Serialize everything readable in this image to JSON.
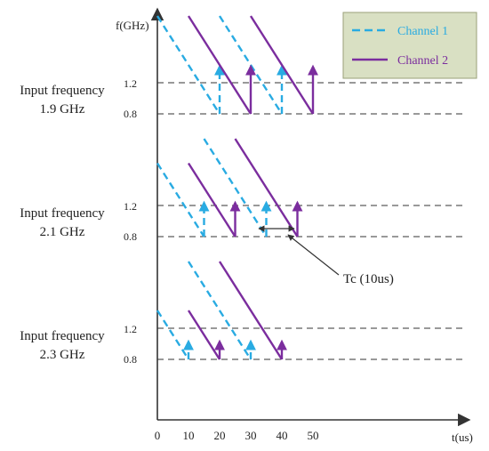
{
  "axes": {
    "y_label": "f(GHz)",
    "x_label": "t(us)",
    "x_ticks": [
      "0",
      "10",
      "20",
      "30",
      "40",
      "50"
    ]
  },
  "legend": {
    "channel1": "Channel 1",
    "channel2": "Channel 2"
  },
  "colors": {
    "channel1": "#29abe2",
    "channel2": "#7b2d9e",
    "axis": "#333333",
    "legend_bg": "#d9e0c3",
    "legend_border": "#9aa17a"
  },
  "panels": [
    {
      "label_line1": "Input frequency",
      "label_line2": "1.9 GHz",
      "level_high": "1.2",
      "level_low": "0.8",
      "channel1_ramps_us": [
        [
          0,
          20
        ],
        [
          20,
          40
        ]
      ],
      "channel2_ramps_us": [
        [
          10,
          30
        ],
        [
          30,
          50
        ]
      ]
    },
    {
      "label_line1": "Input frequency",
      "label_line2": "2.1 GHz",
      "level_high": "1.2",
      "level_low": "0.8",
      "channel1_ramps_us": [
        [
          0,
          15
        ],
        [
          15,
          35
        ]
      ],
      "channel2_ramps_us": [
        [
          10,
          25
        ],
        [
          25,
          45
        ]
      ]
    },
    {
      "label_line1": "Input frequency",
      "label_line2": "2.3 GHz",
      "level_high": "1.2",
      "level_low": "0.8",
      "channel1_ramps_us": [
        [
          0,
          10
        ],
        [
          10,
          30
        ]
      ],
      "channel2_ramps_us": [
        [
          10,
          20
        ],
        [
          20,
          40
        ]
      ]
    }
  ],
  "annotation": {
    "text": "Tc  (10us)"
  }
}
